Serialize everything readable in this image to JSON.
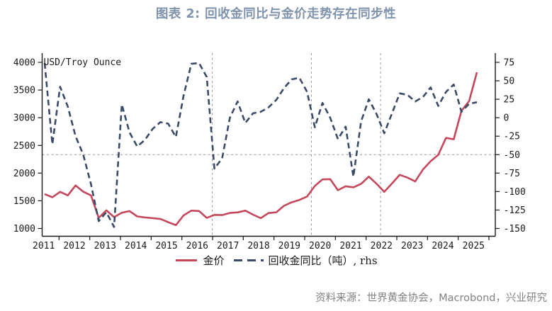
{
  "title": "图表 2: 回收金同比与金价走势存在同步性",
  "source_note": "资料来源：世界黄金协会，Macrobond，兴业研究",
  "legend": {
    "gold_price_label": "金价",
    "recycled_yoy_label": "回收金同比（吨）, rhs"
  },
  "colors": {
    "title": "#8093ad",
    "gold_line": "#c4485c",
    "recycled_line": "#3b4a68",
    "gridline": "#999999",
    "axis": "#1a1a1a",
    "source_text": "#818181"
  },
  "chart_data": {
    "type": "line",
    "title": "图表 2: 回收金同比与金价走势存在同步性",
    "categories": [
      "2011Q3",
      "2011Q4",
      "2012Q1",
      "2012Q2",
      "2012Q3",
      "2012Q4",
      "2013Q1",
      "2013Q2",
      "2013Q3",
      "2013Q4",
      "2014Q1",
      "2014Q2",
      "2014Q3",
      "2014Q4",
      "2015Q1",
      "2015Q2",
      "2015Q3",
      "2015Q4",
      "2016Q1",
      "2016Q2",
      "2016Q3",
      "2016Q4",
      "2017Q1",
      "2017Q2",
      "2017Q3",
      "2017Q4",
      "2018Q1",
      "2018Q2",
      "2018Q3",
      "2018Q4",
      "2019Q1",
      "2019Q2",
      "2019Q3",
      "2019Q4",
      "2020Q1",
      "2020Q2",
      "2020Q3",
      "2020Q4",
      "2021Q1",
      "2021Q2",
      "2021Q3",
      "2021Q4",
      "2022Q1",
      "2022Q2",
      "2022Q3",
      "2022Q4",
      "2023Q1",
      "2023Q2",
      "2023Q3",
      "2023Q4",
      "2024Q1",
      "2024Q2",
      "2024Q3",
      "2024Q4",
      "2025Q1",
      "2025Q2",
      "2025Q3"
    ],
    "series": [
      {
        "name": "金价",
        "axis": "left",
        "style": "solid",
        "color": "#c4485c",
        "values": [
          1620,
          1564,
          1662,
          1598,
          1776,
          1664,
          1598,
          1192,
          1327,
          1205,
          1284,
          1315,
          1217,
          1199,
          1187,
          1171,
          1114,
          1060,
          1237,
          1322,
          1316,
          1190,
          1245,
          1242,
          1280,
          1291,
          1323,
          1250,
          1187,
          1279,
          1292,
          1409,
          1472,
          1515,
          1577,
          1768,
          1886,
          1891,
          1691,
          1763,
          1743,
          1806,
          1937,
          1807,
          1661,
          1812,
          1969,
          1919,
          1849,
          2063,
          2214,
          2331,
          2635,
          2611,
          3124,
          3303,
          3821
        ]
      },
      {
        "name": "回收金同比（吨）, rhs",
        "axis": "right",
        "style": "dashed",
        "color": "#3b4a68",
        "values": [
          74,
          -36,
          42,
          15,
          -25,
          -50,
          -90,
          -140,
          -128,
          -148,
          18,
          -20,
          -39,
          -30,
          -15,
          -6,
          -8,
          -26,
          30,
          73,
          74,
          55,
          -69,
          -55,
          0,
          22,
          -7,
          6,
          8,
          14,
          24,
          40,
          52,
          54,
          35,
          -13,
          20,
          0,
          -29,
          -12,
          -80,
          -5,
          25,
          5,
          -21,
          6,
          33,
          31,
          22,
          28,
          41,
          16,
          35,
          45,
          8,
          19,
          21
        ]
      }
    ],
    "left_axis": {
      "label": "USD/Troy Ounce",
      "min": 1000,
      "max": 4000,
      "ticks": [
        4000,
        3500,
        3000,
        2500,
        2000,
        1500,
        1000
      ]
    },
    "right_axis": {
      "min": -150,
      "max": 75,
      "ticks": [
        75,
        50,
        25,
        0,
        -25,
        -50,
        -75,
        -100,
        -125,
        -150
      ]
    },
    "x_axis": {
      "year_labels": [
        2011,
        2012,
        2013,
        2014,
        2015,
        2016,
        2017,
        2018,
        2019,
        2020,
        2021,
        2022,
        2023,
        2024,
        2025
      ]
    },
    "gridlines": {
      "horizontal_right_value": -50,
      "vertical_years": [
        2016.99,
        2020.22,
        2022.47
      ]
    },
    "legend_position": "bottom"
  }
}
